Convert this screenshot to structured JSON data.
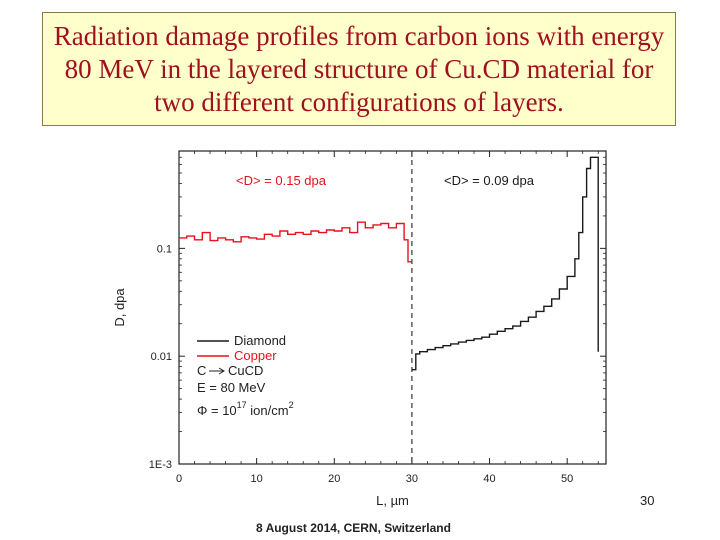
{
  "slide": {
    "title": "Radiation damage profiles from carbon ions with energy 80 MeV in the layered structure of Cu.CD material for two different configurations of layers.",
    "page_number": "30",
    "footer": "8 August 2014, CERN, Switzerland"
  },
  "colors": {
    "title_text": "#a0101e",
    "title_bg": "#ffffcc",
    "copper": "#e8121e",
    "diamond": "#1a1a1a"
  },
  "chart_data": {
    "type": "line",
    "x_scale": "linear",
    "y_scale": "log",
    "xlim": [
      0,
      55
    ],
    "ylim": [
      0.001,
      0.8
    ],
    "xlabel": "L, µm",
    "ylabel": "D, dpa",
    "x_ticks": [
      0,
      10,
      20,
      30,
      40,
      50
    ],
    "y_ticks": [
      {
        "value": 0.001,
        "label": "1E-3"
      },
      {
        "value": 0.01,
        "label": "0.01"
      },
      {
        "value": 0.1,
        "label": "0.1"
      }
    ],
    "divider_x": 30,
    "annotations": [
      {
        "text": "<D> = 0.15 dpa",
        "color": "#e8121e"
      },
      {
        "text": "<D> = 0.09 dpa",
        "color": "#1a1a1a"
      }
    ],
    "legend": {
      "placement": "lower-left",
      "series": [
        "Diamond",
        "Copper"
      ],
      "notes": [
        {
          "lhs": "C",
          "rhs": "CuCD"
        },
        {
          "text": "E = 80 MeV"
        },
        {
          "symbol": "Φ",
          "text": " = 10",
          "sup": "17",
          "tail": " ion/cm",
          "tail_sup": "2"
        }
      ]
    },
    "series": [
      {
        "name": "Copper",
        "color": "#e8121e",
        "x": [
          0,
          1,
          2,
          3,
          4,
          5,
          6,
          7,
          8,
          9,
          10,
          11,
          12,
          13,
          14,
          15,
          16,
          17,
          18,
          19,
          20,
          21,
          22,
          23,
          24,
          25,
          26,
          27,
          28,
          29,
          29.5,
          30
        ],
        "y": [
          0.125,
          0.13,
          0.12,
          0.14,
          0.118,
          0.125,
          0.12,
          0.115,
          0.128,
          0.125,
          0.122,
          0.135,
          0.13,
          0.145,
          0.135,
          0.14,
          0.135,
          0.145,
          0.14,
          0.148,
          0.145,
          0.155,
          0.14,
          0.175,
          0.155,
          0.165,
          0.17,
          0.155,
          0.17,
          0.12,
          0.075,
          0.075
        ]
      },
      {
        "name": "Diamond",
        "color": "#1a1a1a",
        "x": [
          30,
          30.5,
          31,
          32,
          33,
          34,
          35,
          36,
          37,
          38,
          39,
          40,
          41,
          42,
          43,
          44,
          45,
          46,
          47,
          48,
          49,
          50,
          51,
          51.5,
          52,
          52.5,
          53,
          53.5,
          54
        ],
        "y": [
          0.0075,
          0.0105,
          0.011,
          0.0115,
          0.012,
          0.0125,
          0.013,
          0.0135,
          0.014,
          0.0145,
          0.015,
          0.016,
          0.017,
          0.018,
          0.019,
          0.021,
          0.023,
          0.026,
          0.029,
          0.034,
          0.042,
          0.055,
          0.08,
          0.14,
          0.3,
          0.55,
          0.7,
          0.7,
          0.011
        ]
      }
    ]
  }
}
